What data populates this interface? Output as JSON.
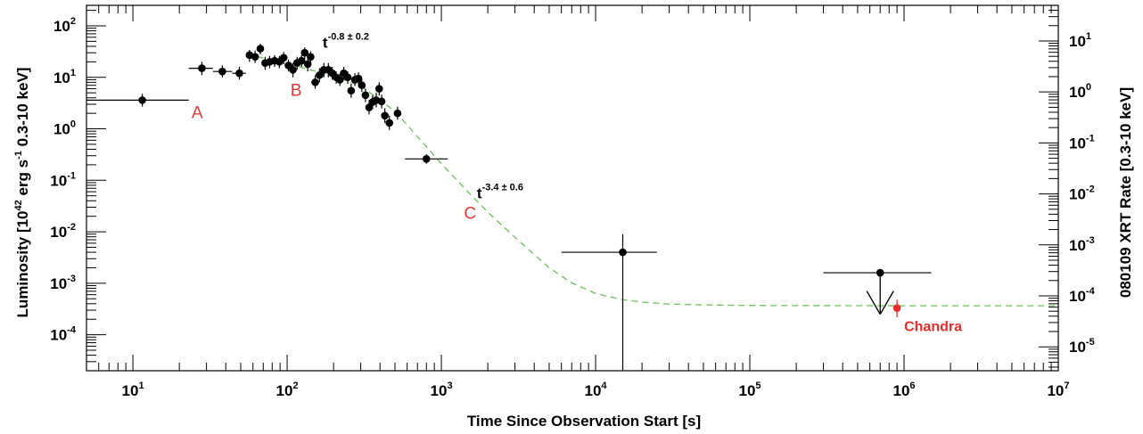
{
  "chart_data": {
    "type": "scatter",
    "xlabel": "Time Since Observation Start [s]",
    "ylabel": {
      "prefix": "Luminosity  [10",
      "sup1": "42",
      "mid": " erg s",
      "sup2": "-1",
      "suffix": " 0.3-10 keV]"
    },
    "y2label": "080109 XRT Rate [0.3-10 keV]",
    "xscale": "log",
    "yscale": "log",
    "xlim": [
      5,
      10000000
    ],
    "ylim": [
      2e-05,
      250
    ],
    "y2lim": [
      3.4e-06,
      50
    ],
    "grid": false,
    "x_ticks": [
      {
        "value": 10,
        "base": "10",
        "exp": "1"
      },
      {
        "value": 100,
        "base": "10",
        "exp": "2"
      },
      {
        "value": 1000,
        "base": "10",
        "exp": "3"
      },
      {
        "value": 10000,
        "base": "10",
        "exp": "4"
      },
      {
        "value": 100000,
        "base": "10",
        "exp": "5"
      },
      {
        "value": 1000000,
        "base": "10",
        "exp": "6"
      },
      {
        "value": 10000000,
        "base": "10",
        "exp": "7"
      }
    ],
    "y_ticks": [
      {
        "value": 100,
        "base": "10",
        "exp": "2"
      },
      {
        "value": 10,
        "base": "10",
        "exp": "1"
      },
      {
        "value": 1,
        "base": "10",
        "exp": "0"
      },
      {
        "value": 0.1,
        "base": "10",
        "exp": "-1"
      },
      {
        "value": 0.01,
        "base": "10",
        "exp": "-2"
      },
      {
        "value": 0.001,
        "base": "10",
        "exp": "-3"
      },
      {
        "value": 0.0001,
        "base": "10",
        "exp": "-4"
      }
    ],
    "y2_ticks": [
      {
        "value": 10,
        "base": "10",
        "exp": "1"
      },
      {
        "value": 1,
        "base": "10",
        "exp": "0"
      },
      {
        "value": 0.1,
        "base": "10",
        "exp": "-1"
      },
      {
        "value": 0.01,
        "base": "10",
        "exp": "-2"
      },
      {
        "value": 0.001,
        "base": "10",
        "exp": "-3"
      },
      {
        "value": 0.0001,
        "base": "10",
        "exp": "-4"
      },
      {
        "value": 1e-05,
        "base": "10",
        "exp": "-5"
      }
    ],
    "series": [
      {
        "points": [
          {
            "x": 11.5,
            "y": 3.6,
            "xlo": 5,
            "xhi": 23,
            "ylo": 2.7,
            "yhi": 4.8
          },
          {
            "x": 28,
            "y": 15,
            "xlo": 23,
            "xhi": 33,
            "ylo": 11,
            "yhi": 20
          },
          {
            "x": 38,
            "y": 13,
            "xlo": 33,
            "xhi": 44,
            "ylo": 10,
            "yhi": 17
          },
          {
            "x": 49,
            "y": 12,
            "xlo": 44,
            "xhi": 54,
            "ylo": 9,
            "yhi": 16
          },
          {
            "x": 57,
            "y": 27,
            "ylo": 20,
            "yhi": 34
          },
          {
            "x": 62,
            "y": 25,
            "ylo": 19,
            "yhi": 33
          },
          {
            "x": 67,
            "y": 36,
            "ylo": 28,
            "yhi": 45
          },
          {
            "x": 72,
            "y": 19,
            "ylo": 14,
            "yhi": 25
          },
          {
            "x": 77,
            "y": 20,
            "ylo": 15,
            "yhi": 26
          },
          {
            "x": 83,
            "y": 21,
            "ylo": 16,
            "yhi": 27
          },
          {
            "x": 89,
            "y": 20,
            "ylo": 15,
            "yhi": 26
          },
          {
            "x": 95,
            "y": 24,
            "ylo": 18,
            "yhi": 31
          },
          {
            "x": 102,
            "y": 17,
            "ylo": 13,
            "yhi": 22
          },
          {
            "x": 109,
            "y": 14,
            "ylo": 10,
            "yhi": 19
          },
          {
            "x": 116,
            "y": 19,
            "ylo": 14,
            "yhi": 25
          },
          {
            "x": 124,
            "y": 21,
            "ylo": 16,
            "yhi": 27
          },
          {
            "x": 130,
            "y": 30,
            "ylo": 23,
            "yhi": 38
          },
          {
            "x": 136,
            "y": 18,
            "ylo": 13,
            "yhi": 24
          },
          {
            "x": 142,
            "y": 25,
            "ylo": 19,
            "yhi": 32
          },
          {
            "x": 152,
            "y": 8,
            "ylo": 6,
            "yhi": 11
          },
          {
            "x": 162,
            "y": 11,
            "ylo": 8,
            "yhi": 15
          },
          {
            "x": 173,
            "y": 14,
            "ylo": 10,
            "yhi": 19
          },
          {
            "x": 185,
            "y": 14,
            "ylo": 10,
            "yhi": 19
          },
          {
            "x": 196,
            "y": 12,
            "ylo": 9,
            "yhi": 16
          },
          {
            "x": 208,
            "y": 10,
            "ylo": 7.5,
            "yhi": 13
          },
          {
            "x": 220,
            "y": 9,
            "ylo": 6.8,
            "yhi": 12
          },
          {
            "x": 233,
            "y": 12,
            "ylo": 9,
            "yhi": 16
          },
          {
            "x": 247,
            "y": 10,
            "ylo": 7.5,
            "yhi": 13
          },
          {
            "x": 260,
            "y": 5.5,
            "ylo": 4,
            "yhi": 7.5
          },
          {
            "x": 275,
            "y": 9,
            "ylo": 6.8,
            "yhi": 12
          },
          {
            "x": 290,
            "y": 9.5,
            "ylo": 7,
            "yhi": 12.5
          },
          {
            "x": 305,
            "y": 7,
            "ylo": 5.2,
            "yhi": 9.5
          },
          {
            "x": 322,
            "y": 4.5,
            "ylo": 3.3,
            "yhi": 6
          },
          {
            "x": 340,
            "y": 2.6,
            "ylo": 1.9,
            "yhi": 3.6
          },
          {
            "x": 358,
            "y": 3.3,
            "ylo": 2.4,
            "yhi": 4.5
          },
          {
            "x": 378,
            "y": 3.6,
            "ylo": 2.6,
            "yhi": 5
          },
          {
            "x": 395,
            "y": 6,
            "ylo": 4.4,
            "yhi": 8
          },
          {
            "x": 410,
            "y": 3.4,
            "ylo": 2.5,
            "yhi": 4.6
          },
          {
            "x": 430,
            "y": 1.8,
            "ylo": 1.3,
            "yhi": 2.5
          },
          {
            "x": 460,
            "y": 1.3,
            "ylo": 0.95,
            "yhi": 1.8
          },
          {
            "x": 520,
            "y": 2,
            "ylo": 1.5,
            "yhi": 2.7
          },
          {
            "x": 800,
            "y": 0.26,
            "xlo": 580,
            "xhi": 1100,
            "ylo": 0.21,
            "yhi": 0.32
          },
          {
            "x": 15000,
            "y": 0.004,
            "xlo": 6000,
            "xhi": 25000,
            "ylo": 1e-05,
            "yhi": 0.009
          },
          {
            "x": 700000,
            "y": 0.0016,
            "xlo": 300000,
            "xhi": 1500000
          }
        ]
      }
    ],
    "upper_limit_arrow": {
      "x": 700000,
      "y_from": 0.0016,
      "y_to": 0.00025
    },
    "chandra_point": {
      "x": 900000,
      "y": 0.00033,
      "ylo": 0.00022,
      "yhi": 0.00048,
      "label": "Chandra"
    },
    "fit_curve": {
      "style": "dashed",
      "points": [
        [
          55,
          28
        ],
        [
          100,
          18.5
        ],
        [
          200,
          10.5
        ],
        [
          300,
          6.8
        ],
        [
          400,
          3.6
        ],
        [
          500,
          2.2
        ],
        [
          700,
          0.7
        ],
        [
          1000,
          0.21
        ],
        [
          1500,
          0.058
        ],
        [
          2000,
          0.024
        ],
        [
          3000,
          0.0078
        ],
        [
          5000,
          0.002
        ],
        [
          7000,
          0.00102
        ],
        [
          10000,
          0.00063
        ],
        [
          15000,
          0.00048
        ],
        [
          20000,
          0.00043
        ],
        [
          30000,
          0.000395
        ],
        [
          50000,
          0.00038
        ],
        [
          100000,
          0.00037
        ],
        [
          1000000,
          0.000365
        ],
        [
          10000000,
          0.000365
        ]
      ]
    },
    "annotations": [
      {
        "text": "A",
        "x": 24,
        "y": 1.6,
        "role": "region"
      },
      {
        "text": "B",
        "x": 105,
        "y": 4.4,
        "role": "region"
      },
      {
        "text": "C",
        "x": 1400,
        "y": 0.018,
        "role": "region"
      }
    ],
    "slope_labels": [
      {
        "base": "t",
        "exp": "-0.8 ± 0.2",
        "x": 170,
        "y": 38
      },
      {
        "base": "t",
        "exp": "-3.4 ± 0.6",
        "x": 1700,
        "y": 0.045
      }
    ]
  },
  "colors": {
    "data": "#000000",
    "fit": "#6dbf5c",
    "labels": "#e03a3a",
    "chandra": "#e82c2c"
  }
}
